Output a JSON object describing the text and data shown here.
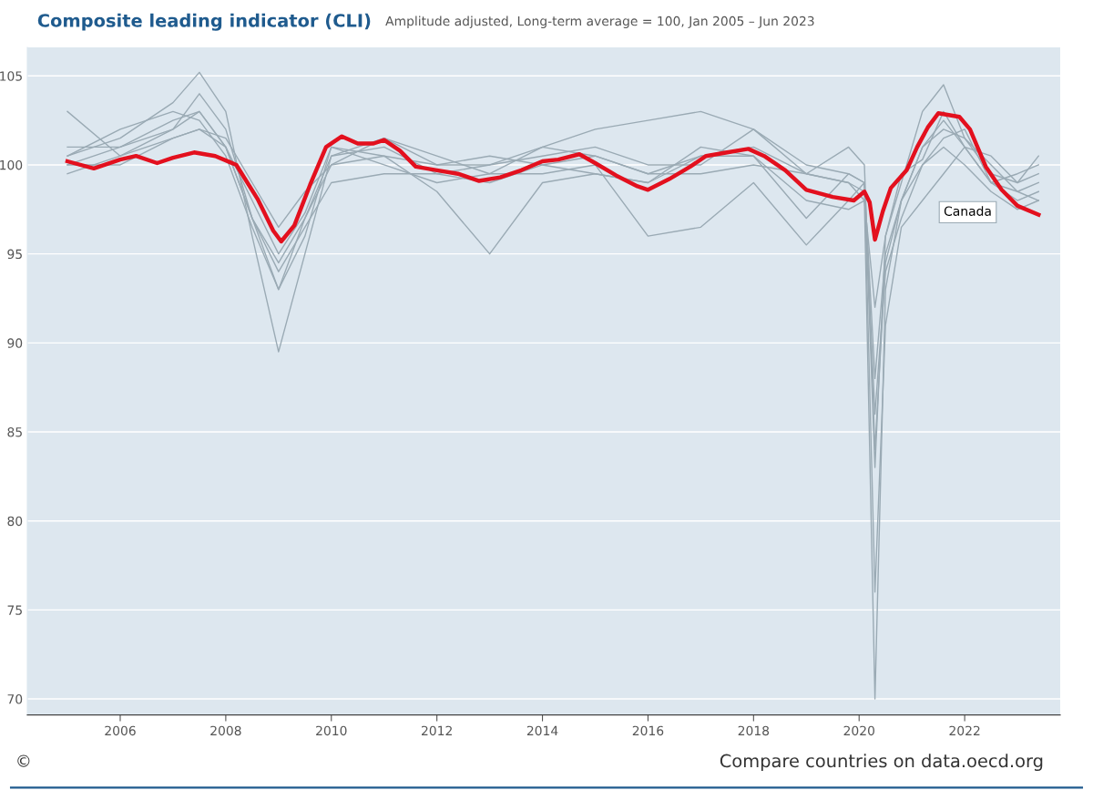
{
  "chart_data": {
    "type": "line",
    "title": "Composite leading indicator (CLI)",
    "subtitle": "Amplitude adjusted, Long-term average = 100, Jan 2005 – Jun 2023",
    "x": [
      2005,
      2006,
      2007,
      2007.5,
      2008,
      2008.5,
      2009,
      2009.5,
      2010,
      2011,
      2012,
      2013,
      2014,
      2015,
      2016,
      2017,
      2018,
      2019,
      2019.8,
      2020.1,
      2020.3,
      2020.5,
      2020.8,
      2021.2,
      2021.6,
      2022,
      2022.5,
      2023,
      2023.4
    ],
    "series": [
      {
        "color": "#9aaab4",
        "values": [
          100.5,
          101.5,
          103.5,
          105.2,
          103,
          96,
          89.5,
          95,
          100.5,
          101,
          99.5,
          99,
          100,
          100.5,
          99.5,
          100.5,
          101,
          99.5,
          99,
          98,
          70,
          93,
          98,
          101,
          102.5,
          101,
          99,
          98.5,
          99
        ]
      },
      {
        "color": "#9aaab4",
        "values": [
          103,
          100.5,
          102,
          104,
          102,
          97,
          93,
          96,
          101,
          100.5,
          98.5,
          95,
          99,
          99.5,
          99,
          101,
          100.5,
          97,
          99.5,
          99,
          83,
          96,
          99,
          103,
          104.5,
          101.5,
          99.5,
          99,
          100.5
        ]
      },
      {
        "color": "#9aaab4",
        "values": [
          100,
          101,
          102.5,
          103,
          101,
          97,
          94.5,
          97,
          100,
          101.5,
          100,
          100,
          100.5,
          101,
          100,
          100,
          102,
          99.5,
          99,
          98.5,
          86,
          94,
          97,
          100,
          101.5,
          102,
          99,
          98,
          98.5
        ]
      },
      {
        "color": "#9aaab4",
        "values": [
          99.5,
          100.5,
          101.5,
          102,
          101,
          98,
          95,
          97.3,
          101,
          100,
          99,
          99.5,
          99.5,
          100,
          96,
          96.5,
          99,
          95.5,
          98,
          99,
          76,
          91,
          96.5,
          98,
          99.5,
          101,
          99,
          99.5,
          100
        ]
      },
      {
        "color": "#9aaab4",
        "values": [
          100.5,
          102,
          103,
          102.5,
          100.5,
          96.5,
          93,
          97,
          100.5,
          101.5,
          100.5,
          99.5,
          101,
          102,
          102.5,
          103,
          102,
          100,
          99.5,
          99,
          88,
          95,
          98,
          101,
          102,
          101.5,
          100,
          98.5,
          98
        ]
      },
      {
        "color": "#9aaab4",
        "values": [
          100,
          100,
          101.5,
          102,
          101.5,
          99,
          96.5,
          98.5,
          100,
          100.5,
          100,
          100.5,
          100,
          99.5,
          99,
          100.5,
          100.5,
          98,
          97.5,
          98,
          92,
          96,
          99.5,
          100.3,
          103,
          101,
          100.5,
          99,
          99.5
        ]
      },
      {
        "color": "#9aaab4",
        "values": [
          101,
          101,
          102,
          103,
          101,
          97,
          94,
          96.5,
          99,
          99.5,
          99.5,
          100,
          101,
          100.5,
          99.5,
          99.5,
          100,
          99.5,
          101,
          100,
          84,
          94.5,
          98,
          100,
          101,
          100,
          98.5,
          97.5,
          98
        ]
      },
      {
        "name": "Canada",
        "color": "#e3101e",
        "x": [
          2005.0,
          2005.5,
          2006.0,
          2006.3,
          2006.7,
          2007.0,
          2007.4,
          2007.8,
          2008.2,
          2008.6,
          2008.9,
          2009.05,
          2009.3,
          2009.6,
          2009.9,
          2010.2,
          2010.5,
          2010.8,
          2011.0,
          2011.3,
          2011.6,
          2012.0,
          2012.4,
          2012.8,
          2013.2,
          2013.6,
          2014.0,
          2014.3,
          2014.7,
          2015.0,
          2015.4,
          2015.8,
          2016.0,
          2016.4,
          2016.8,
          2017.1,
          2017.5,
          2017.9,
          2018.2,
          2018.6,
          2019.0,
          2019.5,
          2019.9,
          2020.1,
          2020.2,
          2020.3,
          2020.45,
          2020.6,
          2020.9,
          2021.1,
          2021.3,
          2021.5,
          2021.9,
          2022.1,
          2022.4,
          2022.7,
          2023.0,
          2023.4
        ],
        "values": [
          100.2,
          99.8,
          100.3,
          100.5,
          100.1,
          100.4,
          100.7,
          100.5,
          100.0,
          98.1,
          96.3,
          95.7,
          96.6,
          98.9,
          101.0,
          101.6,
          101.2,
          101.2,
          101.4,
          100.8,
          99.9,
          99.7,
          99.5,
          99.1,
          99.3,
          99.7,
          100.2,
          100.3,
          100.6,
          100.1,
          99.4,
          98.8,
          98.6,
          99.2,
          99.9,
          100.5,
          100.7,
          100.9,
          100.5,
          99.7,
          98.6,
          98.2,
          98.0,
          98.5,
          97.9,
          95.8,
          97.4,
          98.7,
          99.7,
          101.0,
          102.1,
          102.9,
          102.7,
          102.0,
          99.9,
          98.6,
          97.7,
          97.2
        ]
      }
    ],
    "xlim": [
      2004.24,
      2023.81
    ],
    "xticks": [
      2006,
      2008,
      2010,
      2012,
      2014,
      2016,
      2018,
      2020,
      2022
    ],
    "ylim": [
      69.1,
      106.6
    ],
    "yticks": [
      70,
      75,
      80,
      85,
      90,
      95,
      100,
      105
    ],
    "grid": "y",
    "annotations": [
      "©",
      "Compare countries on data.oecd.org"
    ]
  }
}
